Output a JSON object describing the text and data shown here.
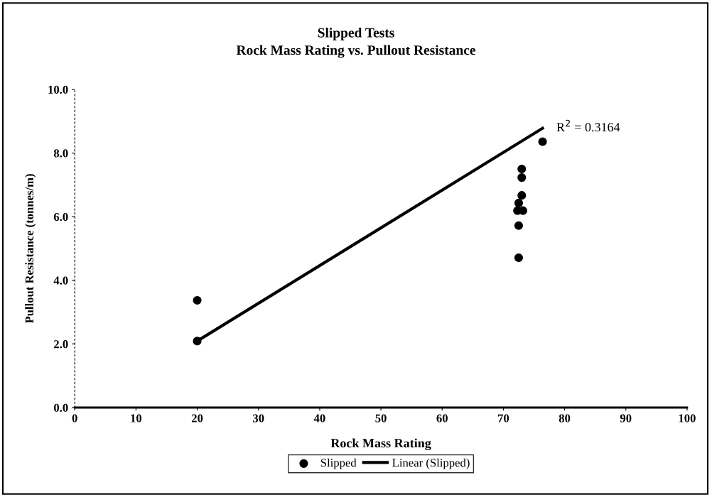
{
  "chart_data": {
    "type": "scatter",
    "title": "Slipped Tests",
    "subtitle": "Rock Mass Rating vs. Pullout Resistance",
    "xlabel": "Rock Mass Rating",
    "ylabel": "Pullout Resistance (tonnes/m)",
    "series": [
      {
        "name": "Slipped",
        "color": "#000000",
        "marker": "circle",
        "x": [
          20,
          20,
          76.4,
          73.0,
          73.0,
          73.0,
          72.5,
          72.3,
          73.2,
          72.5,
          72.5
        ],
        "values": [
          3.37,
          2.09,
          8.36,
          7.5,
          7.23,
          6.67,
          6.43,
          6.19,
          6.19,
          5.72,
          4.71
        ]
      },
      {
        "name": "Linear (Slipped)",
        "color": "#000000",
        "type": "line",
        "marker": "none",
        "line_style": "solid",
        "x": [
          20,
          76.4
        ],
        "values": [
          2.09,
          8.78
        ]
      }
    ],
    "annotations": [
      {
        "text": "R$^{2}$ = 0.3164",
        "x": 76.4,
        "y": 8.78
      }
    ],
    "xlim": [
      0,
      100
    ],
    "xticks": [
      0,
      10,
      20,
      30,
      40,
      50,
      60,
      70,
      80,
      90,
      100
    ],
    "ylim": [
      0,
      10
    ],
    "yticks": [
      {
        "value": 0,
        "label": "0.0"
      },
      {
        "value": 2,
        "label": "2.0"
      },
      {
        "value": 4,
        "label": "4.0"
      },
      {
        "value": 6,
        "label": "6.0"
      },
      {
        "value": 8,
        "label": "8.0"
      },
      {
        "value": 10,
        "label": "10.0"
      }
    ],
    "grid": false,
    "legend": "bottom"
  }
}
